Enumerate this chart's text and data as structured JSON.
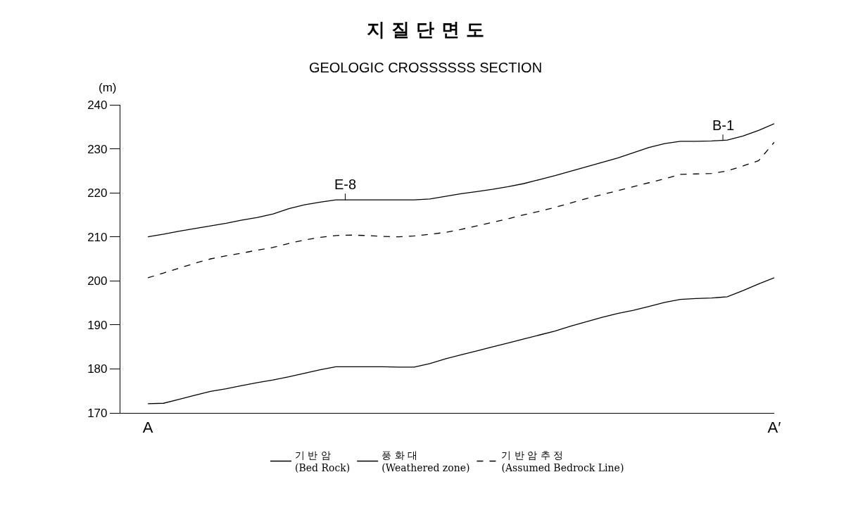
{
  "chart_data": {
    "type": "line",
    "title": "지 질 단 면 도",
    "subtitle": "GEOLOGIC CROSSSSSS SECTION",
    "ylabel": "(m)",
    "categories": [
      "A",
      null,
      null,
      null,
      null,
      null,
      null,
      null,
      null,
      null,
      null,
      null,
      null,
      null,
      null,
      null,
      null,
      null,
      null,
      null,
      null,
      null,
      null,
      null,
      null,
      null,
      null,
      null,
      null,
      null,
      null,
      null,
      null,
      null,
      null,
      null,
      null,
      null,
      null,
      null,
      "A′"
    ],
    "ylim": [
      170,
      240
    ],
    "yticks": [
      170,
      180,
      190,
      200,
      210,
      220,
      230,
      240
    ],
    "grid": false,
    "legend": "bottom",
    "series": [
      {
        "name": "기 반 암\n(Bed Rock)",
        "color": "#000000",
        "line_style": "solid",
        "values": [
          172.1,
          172.2,
          173.1,
          174.0,
          174.9,
          175.5,
          176.2,
          176.9,
          177.5,
          178.2,
          179.0,
          179.8,
          180.5,
          180.5,
          180.5,
          180.5,
          180.4,
          180.4,
          181.2,
          182.3,
          183.2,
          184.1,
          185.0,
          185.9,
          186.8,
          187.7,
          188.6,
          189.7,
          190.7,
          191.7,
          192.6,
          193.3,
          194.2,
          195.1,
          195.8,
          196.0,
          196.1,
          196.4,
          197.8,
          199.3,
          200.7
        ]
      },
      {
        "name": "풍 화 대\n(Weathered zone)",
        "color": "#000000",
        "line_style": "solid",
        "values": [
          210,
          210.6,
          211.3,
          211.9,
          212.5,
          213.1,
          213.8,
          214.4,
          215.2,
          216.4,
          217.3,
          217.9,
          218.4,
          218.4,
          218.4,
          218.4,
          218.4,
          218.4,
          218.6,
          219.2,
          219.8,
          220.3,
          220.8,
          221.4,
          222.1,
          223.0,
          223.9,
          224.9,
          225.9,
          226.9,
          227.9,
          229.1,
          230.3,
          231.2,
          231.7,
          231.7,
          231.8,
          232.0,
          232.9,
          234.2,
          235.7
        ]
      },
      {
        "name": "기 반 암 추 정\n(Assumed Bedrock Line)",
        "color": "#000000",
        "line_style": "dashed",
        "values": [
          200.7,
          201.8,
          202.9,
          204.0,
          205.0,
          205.7,
          206.3,
          207.0,
          207.6,
          208.5,
          209.3,
          209.9,
          210.3,
          210.4,
          210.3,
          210.1,
          210.0,
          210.2,
          210.6,
          211.0,
          211.7,
          212.5,
          213.3,
          214.1,
          215.0,
          215.8,
          216.7,
          217.7,
          218.7,
          219.6,
          220.5,
          221.4,
          222.3,
          223.2,
          224.2,
          224.3,
          224.4,
          225.0,
          226.1,
          227.3,
          231.5
        ]
      }
    ],
    "annotations": [
      {
        "text": "E-8",
        "y": 218.4
      },
      {
        "text": "B-1",
        "y": 231.8
      }
    ]
  }
}
